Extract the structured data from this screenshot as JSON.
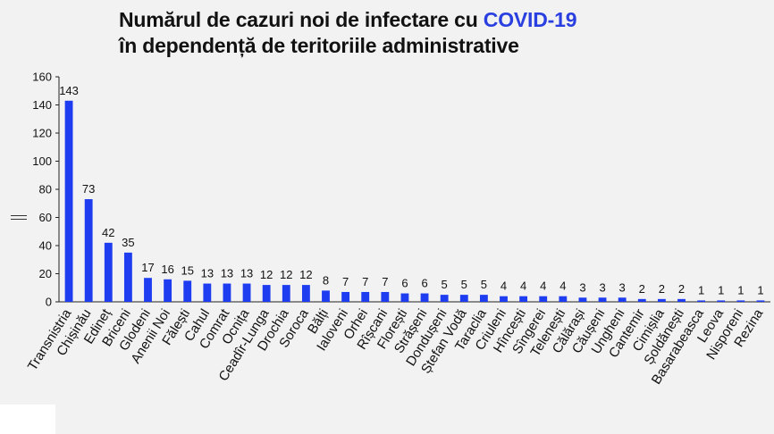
{
  "title": {
    "line1_prefix": "Numărul de cazuri noi de infectare cu ",
    "line1_highlight": "COVID-19",
    "line2": "în dependență de teritoriile administrative",
    "highlight_color": "#2a3fe0"
  },
  "chart_data": {
    "type": "bar",
    "categories": [
      "Transnistria",
      "Chișinău",
      "Edineț",
      "Briceni",
      "Glodeni",
      "Anenii Noi",
      "Fălești",
      "Cahul",
      "Comrat",
      "Ocnița",
      "Ceadîr-Lunga",
      "Drochia",
      "Soroca",
      "Bălți",
      "Ialoveni",
      "Orhei",
      "Rîșcani",
      "Florești",
      "Strășeni",
      "Dondușeni",
      "Ștefan Vodă",
      "Taraclia",
      "Criuleni",
      "Hîncești",
      "Sîngerei",
      "Telenești",
      "Călărași",
      "Căușeni",
      "Ungheni",
      "Cantemir",
      "Cimișlia",
      "Șoldănești",
      "Basarabeasca",
      "Leova",
      "Nisporeni",
      "Rezina"
    ],
    "values": [
      143,
      73,
      42,
      35,
      17,
      16,
      15,
      13,
      13,
      13,
      12,
      12,
      12,
      8,
      7,
      7,
      7,
      6,
      6,
      5,
      5,
      5,
      4,
      4,
      4,
      4,
      3,
      3,
      3,
      2,
      2,
      2,
      1,
      1,
      1,
      1
    ],
    "ylim": [
      0,
      160
    ],
    "yticks": [
      0,
      20,
      40,
      60,
      80,
      100,
      120,
      140,
      160
    ],
    "bar_color": "#1f3df0",
    "data_labels": true,
    "grid": false,
    "legend": "none",
    "xlabel": "",
    "ylabel": ""
  }
}
